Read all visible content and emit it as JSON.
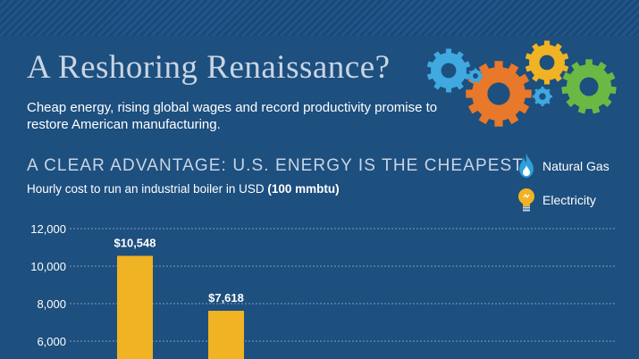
{
  "header": {
    "title": "A Reshoring Renaissance?",
    "subtitle": "Cheap energy, rising global wages and record productivity promise to restore American manufacturing."
  },
  "section": {
    "heading": "A CLEAR ADVANTAGE: U.S. ENERGY IS THE CHEAPEST",
    "description_prefix": "Hourly cost to run an industrial boiler in USD",
    "description_bold": "(100 mmbtu)"
  },
  "legend": {
    "natural_gas": {
      "label": "Natural Gas",
      "icon": "flame-icon",
      "color": "#2d9fd9"
    },
    "electricity": {
      "label": "Electricity",
      "icon": "lightbulb-icon",
      "color": "#f0b323"
    }
  },
  "colors": {
    "background": "#1d4f7f",
    "bar": "#f0b323",
    "gear_blue": "#3fa9e0",
    "gear_orange": "#e8782a",
    "gear_yellow": "#f0b323",
    "gear_green": "#6bb944"
  },
  "chart_data": {
    "type": "bar",
    "title": "",
    "ylabel": "",
    "xlabel": "",
    "ylim": [
      0,
      12000
    ],
    "yticks": [
      12000,
      10000,
      8000,
      6000
    ],
    "ytick_labels": [
      "12,000",
      "10,000",
      "8,000",
      "6,000"
    ],
    "grid": true,
    "series": [
      {
        "values": [
          10548,
          7618
        ],
        "labels": [
          "$10,548",
          "$7,618"
        ],
        "color": "#f0b323"
      }
    ]
  }
}
